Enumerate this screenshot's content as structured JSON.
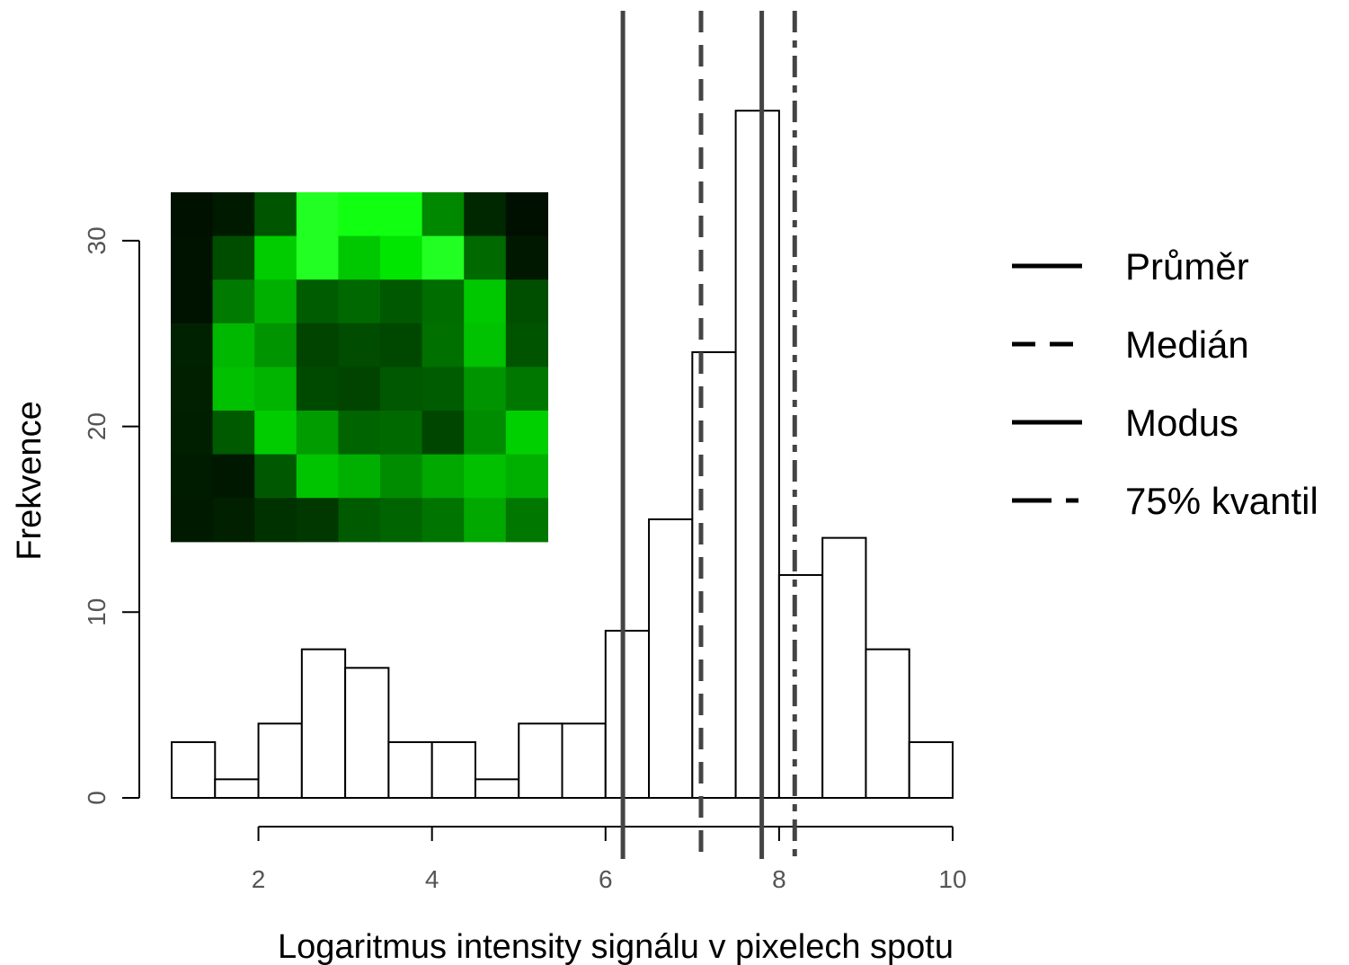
{
  "chart_data": {
    "type": "bar",
    "subtype": "histogram",
    "xlabel": "Logaritmus intensity signálu v pixelech spotu",
    "ylabel": "Frekvence",
    "xlim": [
      1,
      10
    ],
    "ylim": [
      0,
      37
    ],
    "x_ticks": [
      2,
      4,
      6,
      8,
      10
    ],
    "y_ticks": [
      0,
      10,
      20,
      30
    ],
    "bin_edges": [
      1,
      1.5,
      2,
      2.5,
      3,
      3.5,
      4,
      4.5,
      5,
      5.5,
      6,
      6.5,
      7,
      7.5,
      8,
      8.5,
      9,
      9.5,
      10
    ],
    "values": [
      3,
      1,
      4,
      8,
      7,
      3,
      3,
      1,
      4,
      4,
      9,
      15,
      24,
      37,
      12,
      14,
      8,
      3
    ],
    "bar_fill": "#ffffff",
    "bar_stroke": "#000000",
    "reference_lines": [
      {
        "name": "Průměr",
        "x": 6.2,
        "style": "solid",
        "color": "#444444"
      },
      {
        "name": "Medián",
        "x": 7.1,
        "style": "dashed",
        "color": "#444444"
      },
      {
        "name": "Modus",
        "x": 7.8,
        "style": "solid",
        "color": "#444444"
      },
      {
        "name": "75% kvantil",
        "x": 8.18,
        "style": "dashdot",
        "color": "#444444"
      }
    ],
    "legend_position": "right",
    "inset_image": {
      "description": "spot-pixel-heatmap",
      "grid": [
        [
          "#001100",
          "#001a00",
          "#005500",
          "#22ff22",
          "#11ff11",
          "#11ff11",
          "#008800",
          "#002800",
          "#001000"
        ],
        [
          "#001300",
          "#004d00",
          "#00cc00",
          "#22ff22",
          "#00c800",
          "#00e600",
          "#22ff22",
          "#006a00",
          "#001800"
        ],
        [
          "#001200",
          "#007a00",
          "#00b000",
          "#005c00",
          "#006800",
          "#005800",
          "#006d00",
          "#00c800",
          "#004e00"
        ],
        [
          "#002200",
          "#00b800",
          "#009400",
          "#004400",
          "#004c00",
          "#004800",
          "#007000",
          "#00c200",
          "#005400"
        ],
        [
          "#002000",
          "#00c000",
          "#00b400",
          "#004a00",
          "#004400",
          "#005800",
          "#005c00",
          "#009400",
          "#007800"
        ],
        [
          "#001f00",
          "#005a00",
          "#00cc00",
          "#009c00",
          "#006400",
          "#006a00",
          "#004600",
          "#008c00",
          "#00d000"
        ],
        [
          "#001c00",
          "#001800",
          "#005800",
          "#00c400",
          "#00b000",
          "#008c00",
          "#00a800",
          "#00c000",
          "#00b000"
        ],
        [
          "#001a00",
          "#002000",
          "#003200",
          "#003800",
          "#005a00",
          "#006400",
          "#007400",
          "#00a800",
          "#007800"
        ]
      ]
    }
  }
}
